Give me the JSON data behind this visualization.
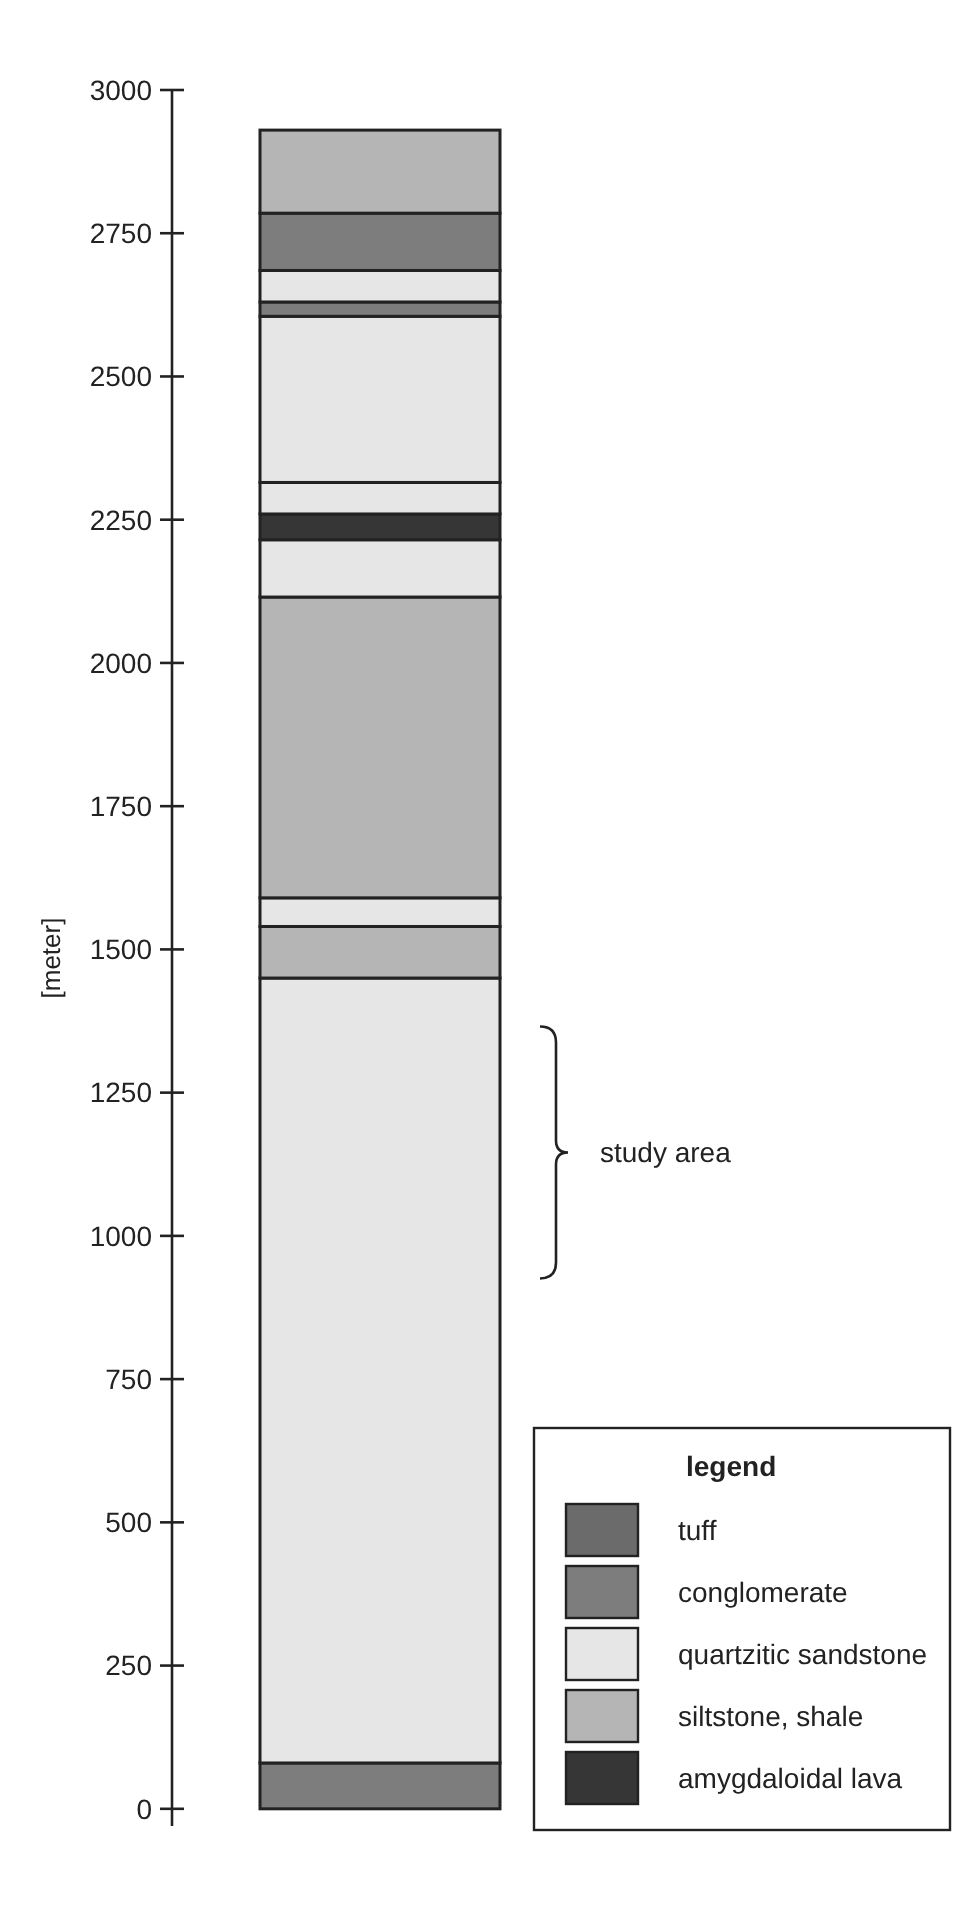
{
  "chart_data": {
    "type": "bar",
    "stacked": true,
    "ylabel": "[meter]",
    "legend_title": "legend",
    "legend": "bottom right",
    "grid": false,
    "tick_labels": "y",
    "categories": [
      null
    ],
    "ylim": [
      -30,
      3000
    ],
    "yticks": [
      0,
      250,
      500,
      750,
      1000,
      1250,
      1500,
      1750,
      2000,
      2250,
      2500,
      2750,
      3000
    ],
    "annotations": [
      "study area",
      "tuff"
    ],
    "series": [
      {
        "name": "conglomerate",
        "color": "#7d7d7d",
        "values": [
          80
        ]
      },
      {
        "name": "quartzitic sandstone",
        "color": "#e6e6e6",
        "values": [
          1370
        ]
      },
      {
        "name": "siltstone, shale",
        "color": "#b5b5b5",
        "values": [
          90
        ]
      },
      {
        "color": "#e6e6e6",
        "values": [
          50
        ]
      },
      {
        "color": "#b5b5b5",
        "values": [
          525
        ]
      },
      {
        "color": "#e6e6e6",
        "values": [
          100
        ]
      },
      {
        "name": "amygdaloidal lava",
        "color": "#363636",
        "values": [
          45
        ]
      },
      {
        "color": "#e6e6e6",
        "values": [
          55
        ]
      },
      {
        "color": "#e6e6e6",
        "values": [
          290
        ]
      },
      {
        "color": "#7d7d7d",
        "values": [
          25
        ]
      },
      {
        "color": "#e6e6e6",
        "values": [
          55
        ]
      },
      {
        "color": "#7d7d7d",
        "values": [
          100
        ]
      },
      {
        "color": "#b5b5b5",
        "values": [
          145
        ]
      }
    ]
  }
}
